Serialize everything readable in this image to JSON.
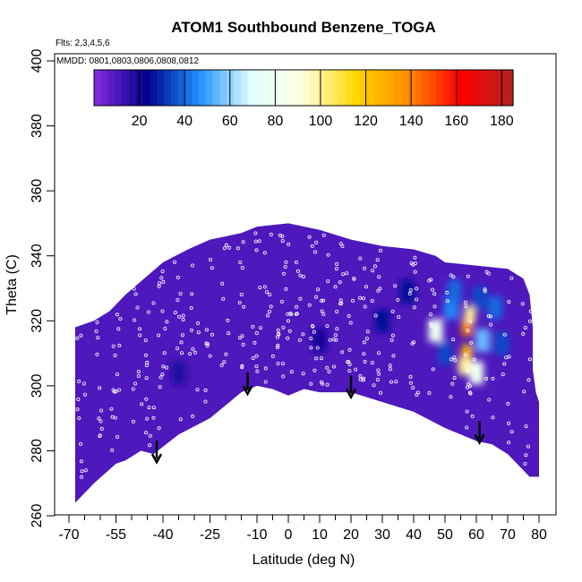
{
  "chart_data": {
    "type": "heatmap",
    "title": "ATOM1 Southbound Benzene_TOGA",
    "annotations": {
      "flights": "Flts: 2,3,4,5,6",
      "dates": "MMDD: 0801,0803,0806,0808,0812"
    },
    "xlabel": "Latitude (deg N)",
    "ylabel": "Theta (C)",
    "xlim": [
      -70,
      80
    ],
    "ylim": [
      260,
      400
    ],
    "x_ticks": [
      -70,
      -55,
      -40,
      -25,
      -10,
      0,
      10,
      20,
      30,
      40,
      50,
      60,
      70,
      80
    ],
    "x_tick_labels": [
      "-70",
      "-55",
      "-40",
      "-25",
      "-10",
      "0",
      "10",
      "20",
      "30",
      "40",
      "50",
      "60",
      "70",
      "80"
    ],
    "x_minor_ticks": [
      -65,
      -60,
      -50,
      -45,
      -35,
      -30,
      -20,
      -15,
      -5,
      5,
      15,
      25,
      35,
      45,
      55,
      65,
      75
    ],
    "y_ticks": [
      260,
      280,
      300,
      320,
      340,
      360,
      380,
      400
    ],
    "y_tick_labels": [
      "260",
      "280",
      "300",
      "320",
      "340",
      "360",
      "380",
      "400"
    ],
    "colorbar": {
      "min": 0,
      "max": 185,
      "ticks": [
        20,
        40,
        60,
        80,
        100,
        120,
        140,
        160,
        180
      ],
      "tick_labels": [
        "20",
        "40",
        "60",
        "80",
        "100",
        "120",
        "140",
        "160",
        "180"
      ],
      "colors": [
        "#8a2be2",
        "#00008b",
        "#1e90ff",
        "#e0ffff",
        "#ffffe0",
        "#ffd700",
        "#ff8c00",
        "#ff0000",
        "#b22222"
      ]
    },
    "background_value": 10,
    "domain_top": [
      [
        -68,
        318
      ],
      [
        -62,
        320
      ],
      [
        -57,
        323
      ],
      [
        -52,
        328
      ],
      [
        -46,
        333
      ],
      [
        -40,
        338
      ],
      [
        -32,
        342
      ],
      [
        -25,
        345
      ],
      [
        -15,
        347
      ],
      [
        -10,
        349
      ],
      [
        0,
        350
      ],
      [
        10,
        348
      ],
      [
        20,
        345
      ],
      [
        30,
        343
      ],
      [
        40,
        342
      ],
      [
        47,
        340
      ],
      [
        50,
        338
      ],
      [
        60,
        337
      ],
      [
        70,
        336
      ],
      [
        75,
        333
      ],
      [
        77,
        328
      ],
      [
        78,
        318
      ],
      [
        78,
        305
      ],
      [
        79,
        298
      ],
      [
        80,
        295
      ],
      [
        80,
        272
      ]
    ],
    "domain_bottom": [
      [
        77,
        272
      ],
      [
        70,
        279
      ],
      [
        65,
        282
      ],
      [
        60,
        283
      ],
      [
        50,
        287
      ],
      [
        40,
        292
      ],
      [
        30,
        295
      ],
      [
        20,
        298
      ],
      [
        10,
        298
      ],
      [
        5,
        299
      ],
      [
        0,
        297
      ],
      [
        -5,
        299
      ],
      [
        -10,
        300
      ],
      [
        -15,
        298
      ],
      [
        -25,
        290
      ],
      [
        -35,
        285
      ],
      [
        -43,
        279
      ],
      [
        -47,
        280
      ],
      [
        -52,
        277
      ],
      [
        -55,
        276
      ],
      [
        -62,
        270
      ],
      [
        -65,
        267
      ],
      [
        -68,
        264
      ]
    ],
    "hotspots": [
      {
        "lat": 57,
        "theta": 318,
        "value": 140
      },
      {
        "lat": 57,
        "theta": 310,
        "value": 125
      },
      {
        "lat": 58,
        "theta": 322,
        "value": 100
      },
      {
        "lat": 56,
        "theta": 306,
        "value": 100
      },
      {
        "lat": 60,
        "theta": 304,
        "value": 80
      },
      {
        "lat": 47,
        "theta": 317,
        "value": 80
      },
      {
        "lat": 52,
        "theta": 324,
        "value": 45
      },
      {
        "lat": 62,
        "theta": 314,
        "value": 55
      },
      {
        "lat": 53,
        "theta": 329,
        "value": 40
      },
      {
        "lat": 66,
        "theta": 324,
        "value": 40
      },
      {
        "lat": 68,
        "theta": 313,
        "value": 35
      },
      {
        "lat": 61,
        "theta": 327,
        "value": 35
      },
      {
        "lat": 50,
        "theta": 310,
        "value": 35
      },
      {
        "lat": 30,
        "theta": 320,
        "value": 25
      },
      {
        "lat": 38,
        "theta": 329,
        "value": 25
      },
      {
        "lat": 10,
        "theta": 314,
        "value": 20
      },
      {
        "lat": -35,
        "theta": 304,
        "value": 18
      }
    ],
    "arrows": [
      {
        "lat": -42,
        "theta": 282
      },
      {
        "lat": -13,
        "theta": 303
      },
      {
        "lat": 20,
        "theta": 302
      },
      {
        "lat": 61,
        "theta": 288
      }
    ]
  }
}
